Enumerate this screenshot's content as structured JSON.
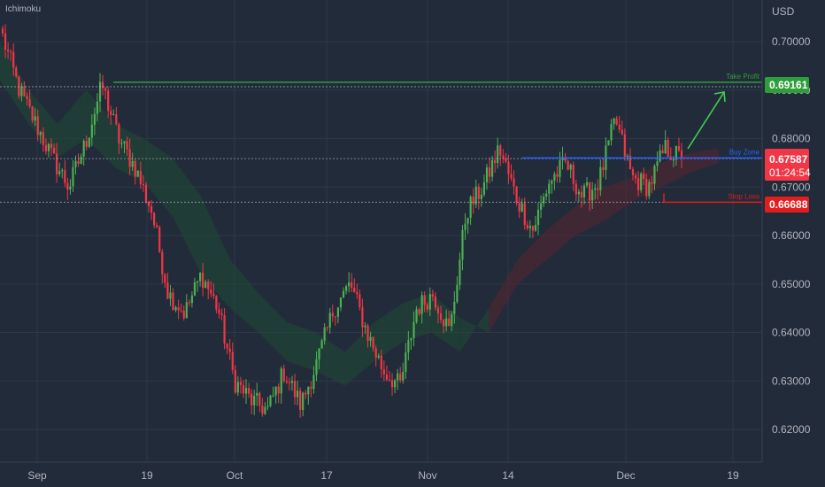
{
  "indicator": {
    "name": "Ichimoku"
  },
  "axis": {
    "currency": "USD"
  },
  "colors": {
    "background": "#222b3a",
    "bull": "#4caf50",
    "bear": "#f23645",
    "grid": "#2e3747",
    "take_profit": "#2e9e3a",
    "buy_zone": "#2962ff",
    "stop_loss": "#e11d1d",
    "current_price": "#f23645",
    "arrow": "#3ecf4e",
    "cloud_bull": "#1f4a35",
    "cloud_bear": "#5a2430"
  },
  "levels": {
    "take_profit": {
      "label": "Take Profit",
      "price": "0.69161",
      "value": 0.69161
    },
    "buy_zone": {
      "label": "Buy Zone",
      "value": 0.676
    },
    "current": {
      "price": "0.67587",
      "value": 0.67587,
      "countdown": "01:24:54"
    },
    "stop_loss": {
      "label": "Stop Loss",
      "price": "0.66688",
      "value": 0.66688
    }
  },
  "chart_data": {
    "type": "candlestick",
    "ylim": [
      0.6155,
      0.7052
    ],
    "y_ticks": [
      "0.70000",
      "0.69000",
      "0.68000",
      "0.67000",
      "0.66000",
      "0.65000",
      "0.64000",
      "0.63000",
      "0.62000"
    ],
    "y_tick_values": [
      0.7,
      0.69,
      0.68,
      0.67,
      0.66,
      0.65,
      0.64,
      0.63,
      0.62
    ],
    "x_ticks": [
      "Sep",
      "19",
      "Oct",
      "17",
      "Nov",
      "14",
      "Dec",
      "19"
    ],
    "close_anchors": [
      0.701,
      0.69,
      0.683,
      0.676,
      0.67,
      0.679,
      0.691,
      0.68,
      0.674,
      0.665,
      0.648,
      0.644,
      0.652,
      0.645,
      0.63,
      0.626,
      0.624,
      0.632,
      0.625,
      0.634,
      0.645,
      0.65,
      0.64,
      0.632,
      0.629,
      0.645,
      0.648,
      0.64,
      0.665,
      0.67,
      0.678,
      0.668,
      0.661,
      0.671,
      0.675,
      0.668,
      0.671,
      0.684,
      0.672,
      0.67,
      0.678,
      0.6759
    ],
    "cloud_anchors": [
      [
        0.7,
        0.692
      ],
      [
        0.69,
        0.683
      ],
      [
        0.683,
        0.676
      ],
      [
        0.69,
        0.68
      ],
      [
        0.683,
        0.674
      ],
      [
        0.68,
        0.671
      ],
      [
        0.676,
        0.664
      ],
      [
        0.668,
        0.652
      ],
      [
        0.655,
        0.645
      ],
      [
        0.648,
        0.64
      ],
      [
        0.642,
        0.634
      ],
      [
        0.64,
        0.632
      ],
      [
        0.636,
        0.629
      ],
      [
        0.642,
        0.634
      ],
      [
        0.646,
        0.638
      ],
      [
        0.648,
        0.64
      ],
      [
        0.643,
        0.636
      ],
      [
        0.64,
        0.645
      ],
      [
        0.65,
        0.655
      ],
      [
        0.655,
        0.661
      ],
      [
        0.66,
        0.666
      ],
      [
        0.663,
        0.67
      ],
      [
        0.667,
        0.672
      ],
      [
        0.67,
        0.675
      ],
      [
        0.673,
        0.677
      ],
      [
        0.675,
        0.678
      ]
    ]
  }
}
